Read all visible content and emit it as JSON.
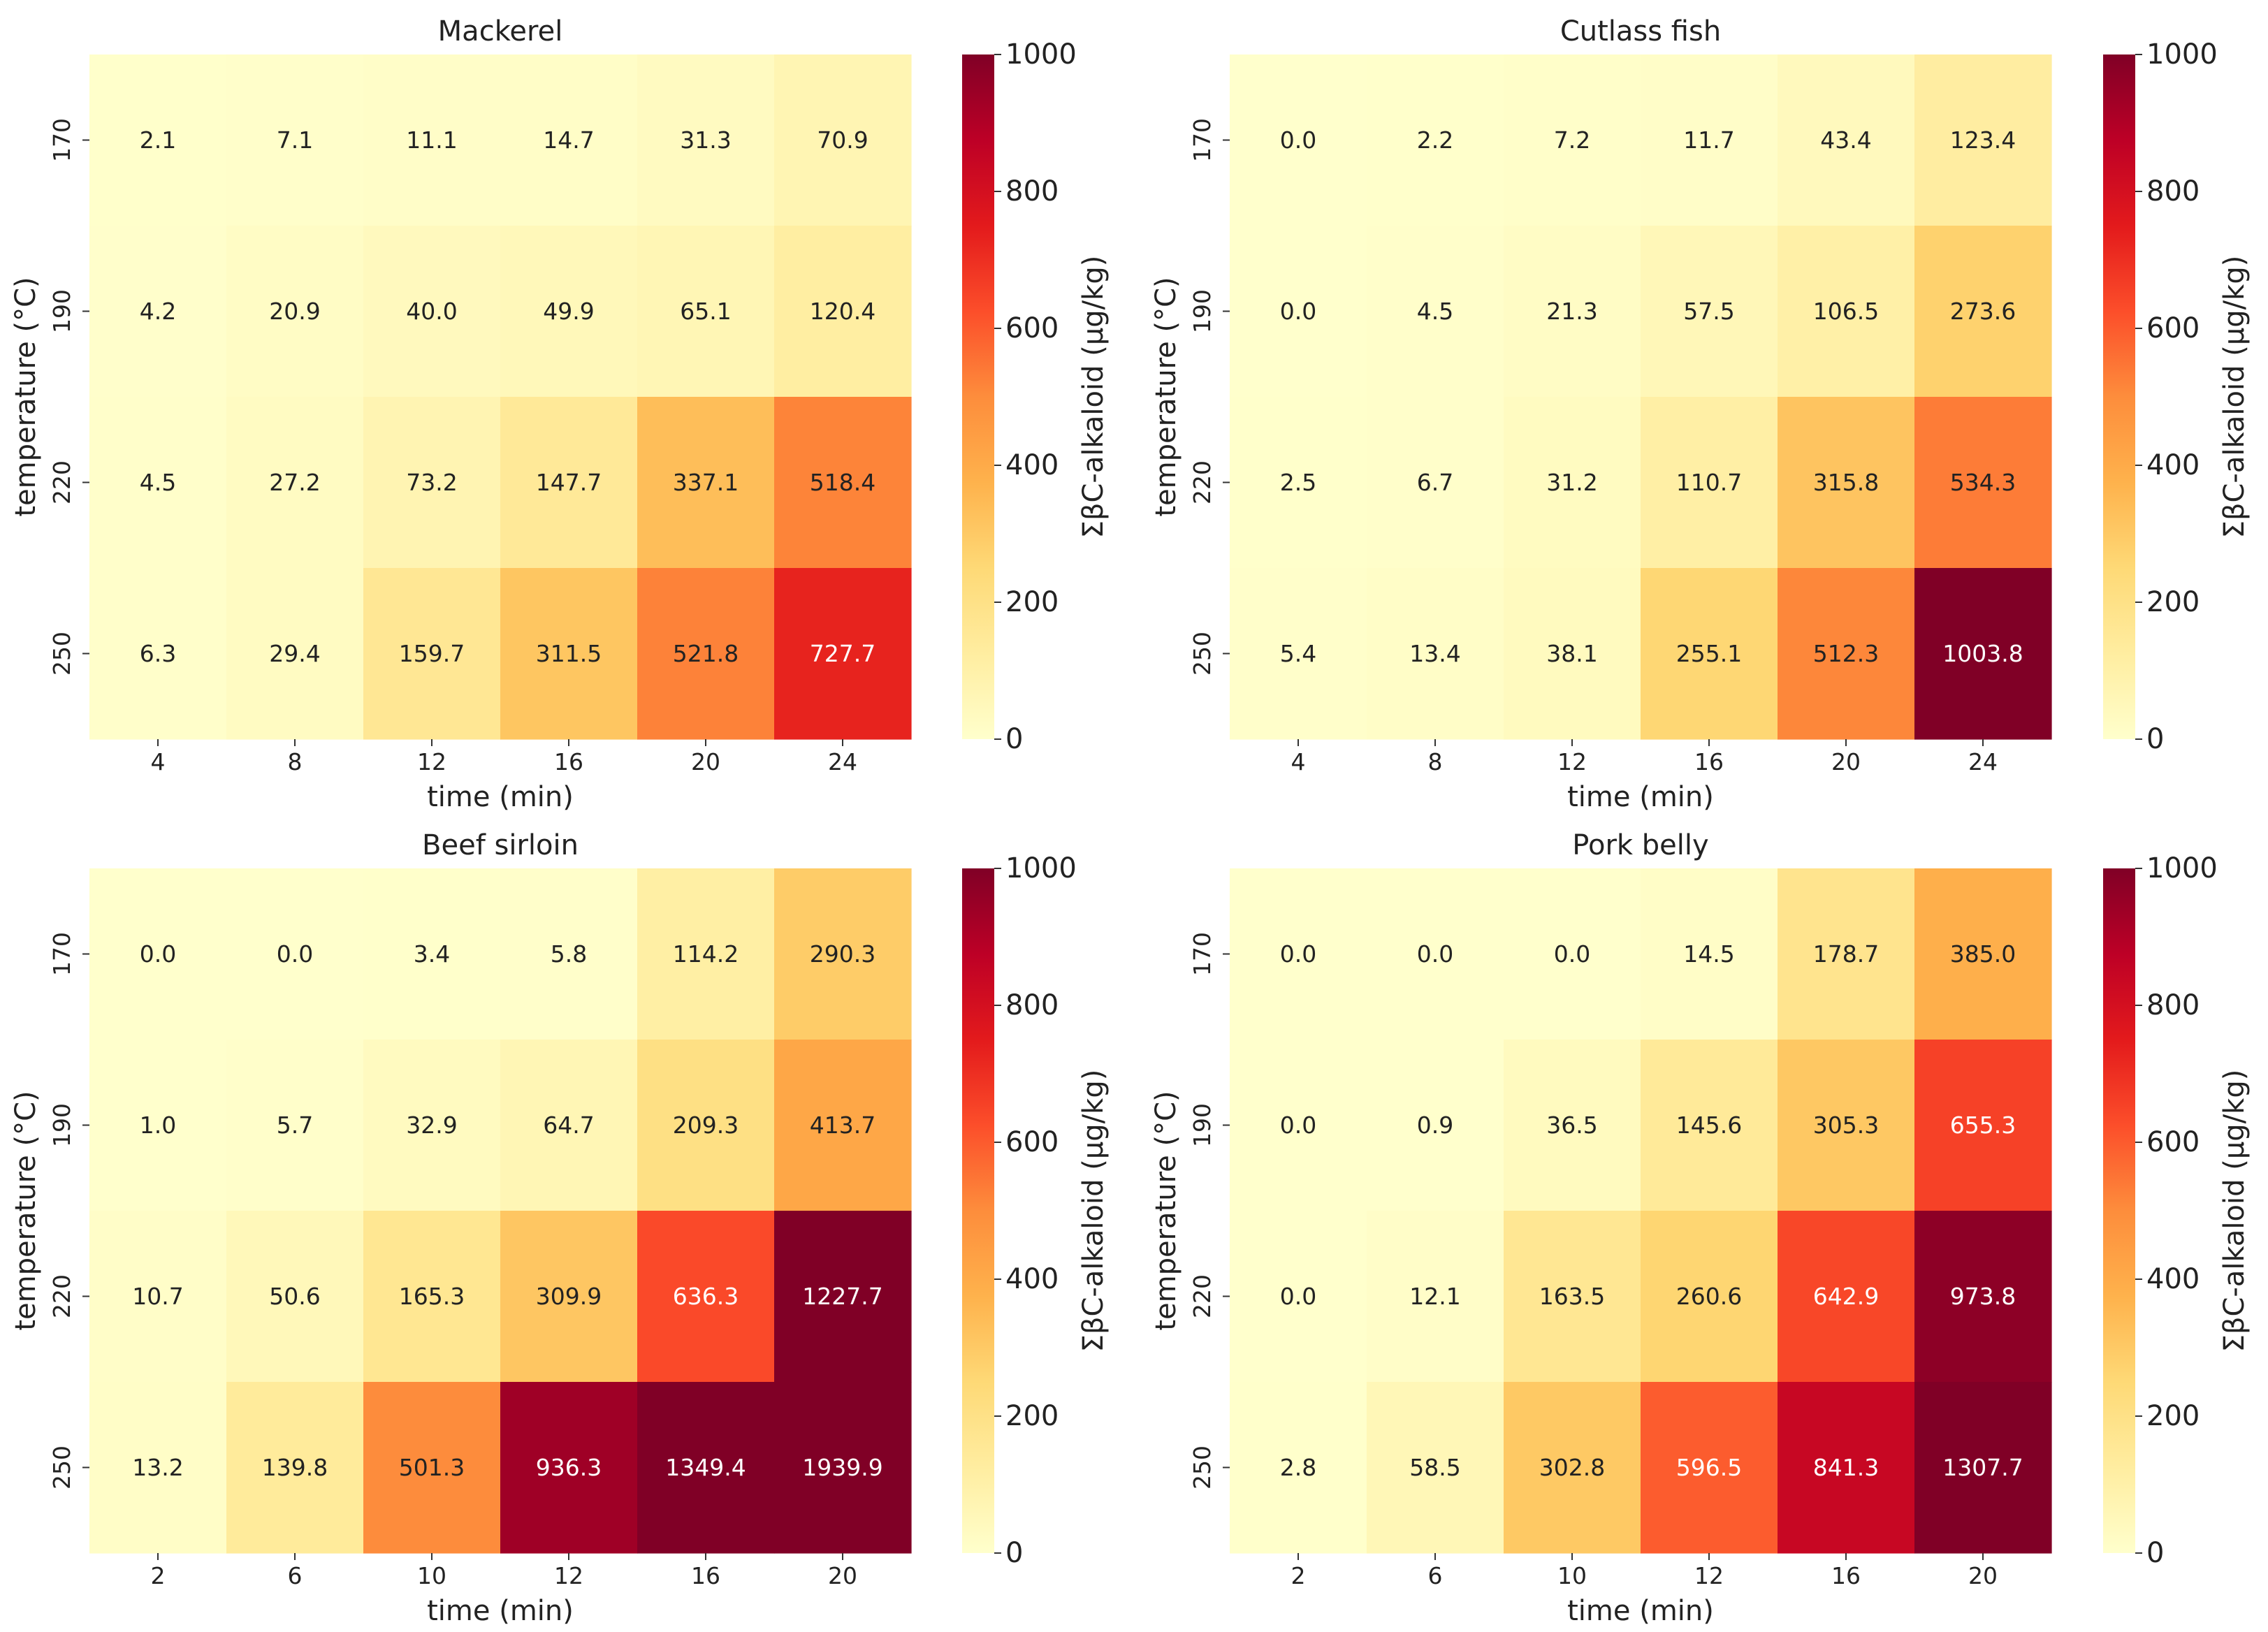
{
  "colormap": {
    "name": "YlOrRd",
    "stops": [
      "#ffffcc",
      "#ffeda0",
      "#fed976",
      "#feb24c",
      "#fd8d3c",
      "#fc4e2a",
      "#e31a1c",
      "#bd0026",
      "#800026"
    ],
    "text_dark": "#222222",
    "text_light": "#ffffff"
  },
  "chart_data": [
    {
      "type": "heatmap",
      "title": "Mackerel",
      "xlabel": "time (min)",
      "ylabel": "temperature (°C)",
      "colorbar_label": "ΣβC-alkaloid (μg/kg)",
      "x_ticks": [
        "4",
        "8",
        "12",
        "16",
        "20",
        "24"
      ],
      "y_ticks": [
        "170",
        "190",
        "220",
        "250"
      ],
      "vmin": 0,
      "vmax": 1000,
      "colorbar_ticks": [
        "0",
        "200",
        "400",
        "600",
        "800",
        "1000"
      ],
      "values": [
        [
          2.1,
          7.1,
          11.1,
          14.7,
          31.3,
          70.9
        ],
        [
          4.2,
          20.9,
          40.0,
          49.9,
          65.1,
          120.4
        ],
        [
          4.5,
          27.2,
          73.2,
          147.7,
          337.1,
          518.4
        ],
        [
          6.3,
          29.4,
          159.7,
          311.5,
          521.8,
          727.7
        ]
      ]
    },
    {
      "type": "heatmap",
      "title": "Cutlass fish",
      "xlabel": "time (min)",
      "ylabel": "temperature (°C)",
      "colorbar_label": "ΣβC-alkaloid (μg/kg)",
      "x_ticks": [
        "4",
        "8",
        "12",
        "16",
        "20",
        "24"
      ],
      "y_ticks": [
        "170",
        "190",
        "220",
        "250"
      ],
      "vmin": 0,
      "vmax": 1000,
      "colorbar_ticks": [
        "0",
        "200",
        "400",
        "600",
        "800",
        "1000"
      ],
      "values": [
        [
          0.0,
          2.2,
          7.2,
          11.7,
          43.4,
          123.4
        ],
        [
          0.0,
          4.5,
          21.3,
          57.5,
          106.5,
          273.6
        ],
        [
          2.5,
          6.7,
          31.2,
          110.7,
          315.8,
          534.3
        ],
        [
          5.4,
          13.4,
          38.1,
          255.1,
          512.3,
          1003.8
        ]
      ]
    },
    {
      "type": "heatmap",
      "title": "Beef sirloin",
      "xlabel": "time (min)",
      "ylabel": "temperature (°C)",
      "colorbar_label": "ΣβC-alkaloid (μg/kg)",
      "x_ticks": [
        "2",
        "6",
        "10",
        "12",
        "16",
        "20"
      ],
      "y_ticks": [
        "170",
        "190",
        "220",
        "250"
      ],
      "vmin": 0,
      "vmax": 1000,
      "colorbar_ticks": [
        "0",
        "200",
        "400",
        "600",
        "800",
        "1000"
      ],
      "values": [
        [
          0.0,
          0.0,
          3.4,
          5.8,
          114.2,
          290.3
        ],
        [
          1.0,
          5.7,
          32.9,
          64.7,
          209.3,
          413.7
        ],
        [
          10.7,
          50.6,
          165.3,
          309.9,
          636.3,
          1227.7
        ],
        [
          13.2,
          139.8,
          501.3,
          936.3,
          1349.4,
          1939.9
        ]
      ]
    },
    {
      "type": "heatmap",
      "title": "Pork belly",
      "xlabel": "time (min)",
      "ylabel": "temperature (°C)",
      "colorbar_label": "ΣβC-alkaloid (μg/kg)",
      "x_ticks": [
        "2",
        "6",
        "10",
        "12",
        "16",
        "20"
      ],
      "y_ticks": [
        "170",
        "190",
        "220",
        "250"
      ],
      "vmin": 0,
      "vmax": 1000,
      "colorbar_ticks": [
        "0",
        "200",
        "400",
        "600",
        "800",
        "1000"
      ],
      "values": [
        [
          0.0,
          0.0,
          0.0,
          14.5,
          178.7,
          385.0
        ],
        [
          0.0,
          0.9,
          36.5,
          145.6,
          305.3,
          655.3
        ],
        [
          0.0,
          12.1,
          163.5,
          260.6,
          642.9,
          973.8
        ],
        [
          2.8,
          58.5,
          302.8,
          596.5,
          841.3,
          1307.7
        ]
      ]
    }
  ]
}
